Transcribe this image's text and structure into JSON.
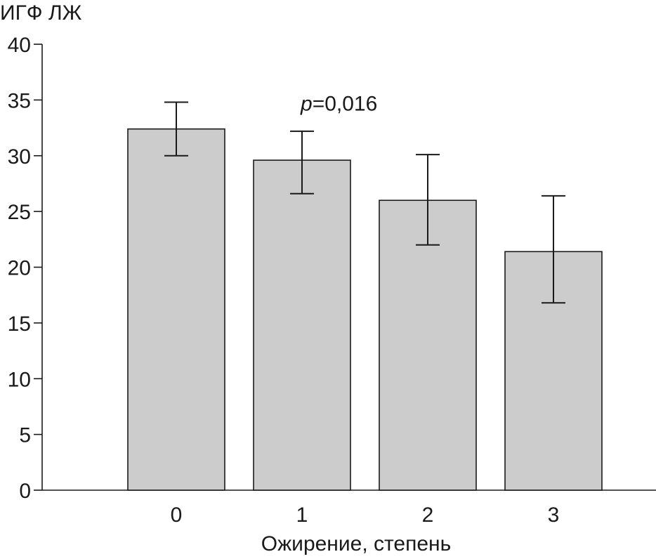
{
  "chart_data": {
    "type": "bar",
    "title": "",
    "ylabel": "ИГФ ЛЖ",
    "xlabel": "Ожирение, степень",
    "categories": [
      "0",
      "1",
      "2",
      "3"
    ],
    "values": [
      32.4,
      29.6,
      26.0,
      21.4
    ],
    "error_low": [
      30.0,
      26.6,
      22.0,
      16.8
    ],
    "error_high": [
      34.8,
      32.2,
      30.1,
      26.4
    ],
    "ylim": [
      0,
      40
    ],
    "yticks": [
      0,
      5,
      10,
      15,
      20,
      25,
      30,
      35,
      40
    ],
    "grid": false,
    "annotation": {
      "p_symbol": "p",
      "p_value_text": "=0,016",
      "near_category": "1",
      "y_value": 35
    },
    "colors": {
      "bar_fill": "#cccccc",
      "stroke": "#1a1a1a"
    }
  }
}
